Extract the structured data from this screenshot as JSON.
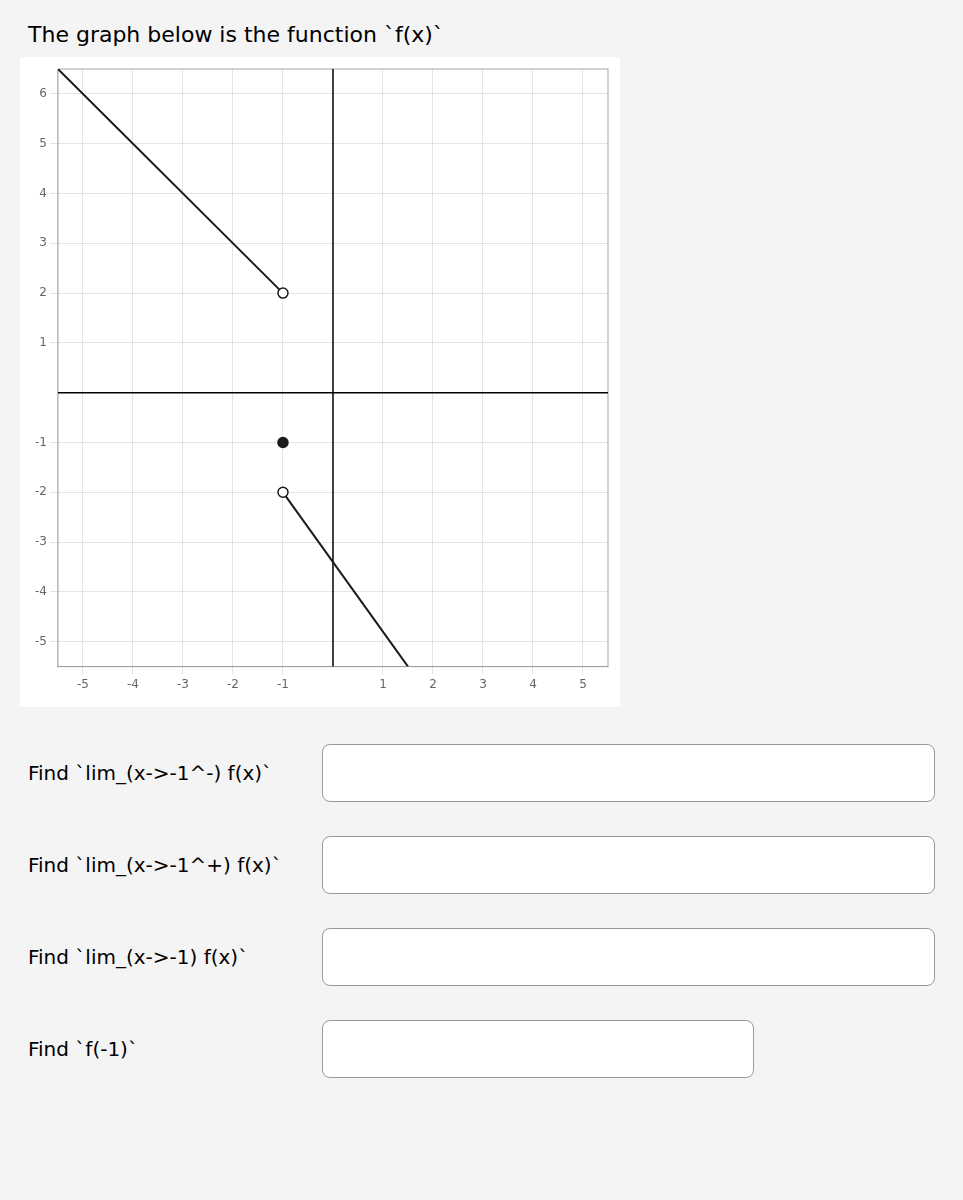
{
  "chart_data": {
    "type": "line",
    "title": "The graph below is the function `f(x)`",
    "annotations": [
      "Find `lim_(x->-1^-) f(x)`",
      "Find `lim_(x->-1^+) f(x)`",
      "Find `lim_(x->-1) f(x)`",
      "Find `f(-1)`"
    ],
    "xlim": [
      -5.5,
      5.5
    ],
    "ylim": [
      -5.5,
      6.5
    ],
    "xticks": [
      -5,
      -4,
      -3,
      -2,
      -1,
      1,
      2,
      3,
      4,
      5
    ],
    "yticks": [
      -5,
      -4,
      -3,
      -2,
      -1,
      1,
      2,
      3,
      4,
      5,
      6
    ],
    "grid": true,
    "series": [
      {
        "color": "#1a1a1a",
        "x": [
          -5.5,
          -1
        ],
        "values": [
          6.5,
          2
        ],
        "marker": "none",
        "line_style": "solid"
      },
      {
        "color": "#1a1a1a",
        "x": [
          -1,
          1.5
        ],
        "values": [
          -2,
          -5.5
        ],
        "marker": "none",
        "line_style": "solid"
      },
      {
        "color": "#1a1a1a",
        "x": [
          -1,
          -1
        ],
        "values": [
          2,
          -2
        ],
        "marker": "open_circle",
        "line_style": "none"
      },
      {
        "color": "#1a1a1a",
        "x": [
          -1
        ],
        "values": [
          -1
        ],
        "marker": "circle",
        "line_style": "none"
      }
    ]
  }
}
